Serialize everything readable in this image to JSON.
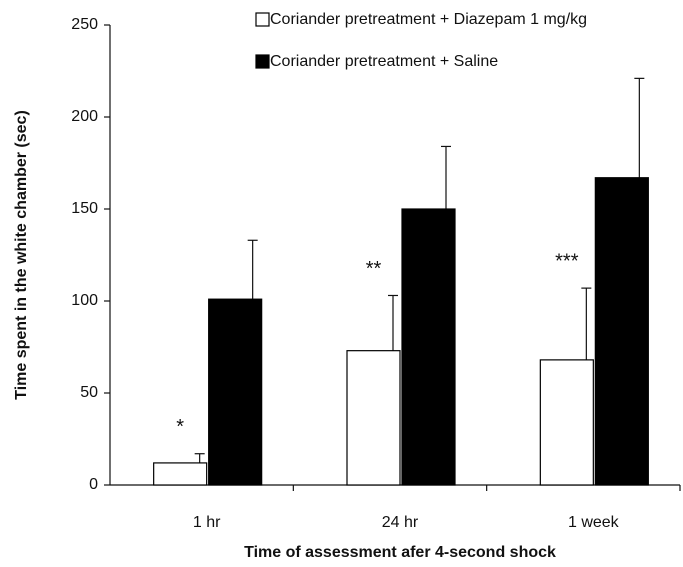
{
  "chart_data": {
    "type": "bar",
    "x_label": "Time of assessment afer 4-second shock",
    "y_label": "Time spent in the white chamber (sec)",
    "categories": [
      "1 hr",
      "24 hr",
      "1 week"
    ],
    "series": [
      {
        "name": "Coriander pretreatment + Diazepam 1 mg/kg",
        "color": "#ffffff",
        "values": [
          12,
          73,
          68
        ],
        "errors": [
          5,
          30,
          39
        ]
      },
      {
        "name": "Coriander pretreatment + Saline",
        "color": "#000000",
        "values": [
          101,
          150,
          167
        ],
        "errors": [
          32,
          34,
          54
        ]
      }
    ],
    "annotations": [
      "*",
      "**",
      "***"
    ],
    "ylim": [
      0,
      250
    ],
    "yticks": [
      0,
      50,
      100,
      150,
      200,
      250
    ],
    "legend": "top-right",
    "grid": false
  }
}
